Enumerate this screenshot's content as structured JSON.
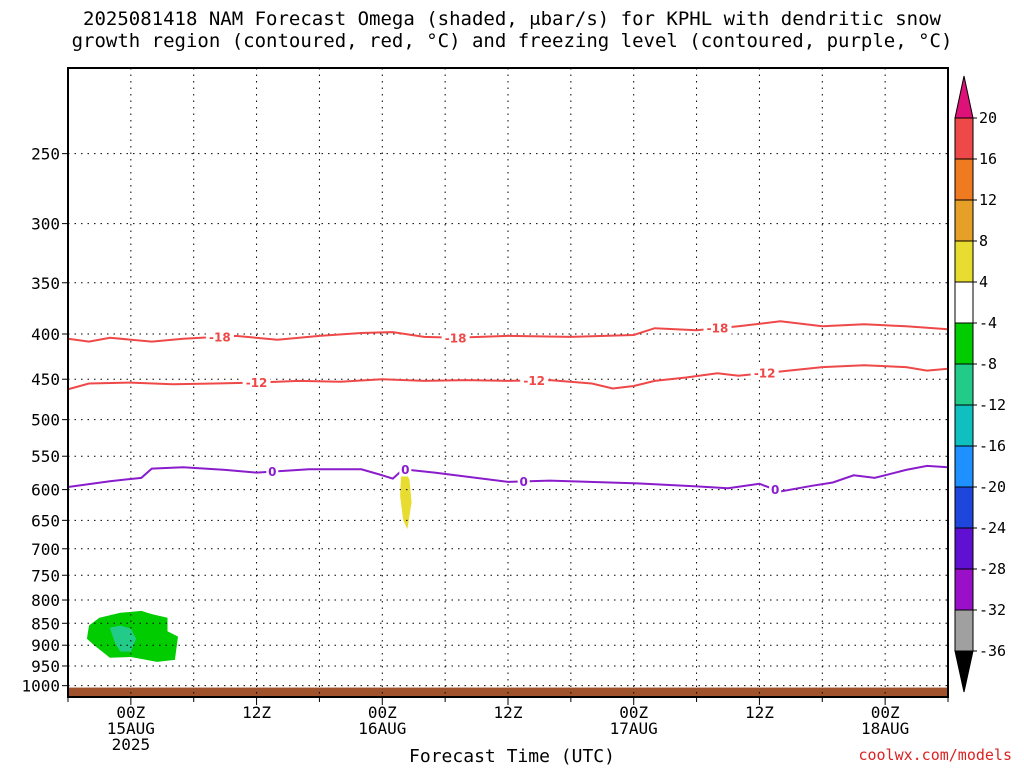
{
  "title_lines": [
    "2025081418 NAM Forecast Omega (shaded, μbar/s) for KPHL with dendritic snow",
    "growth region (contoured, red, °C) and freezing level (contoured, purple, °C)"
  ],
  "xlabel": "Forecast Time (UTC)",
  "credit": "coolwx.com/models",
  "colors": {
    "red_contour": "#ef4848",
    "purple_contour": "#8a1ccc",
    "ground": "#a0522d",
    "grid": "#000000"
  },
  "chart_data": {
    "type": "contour",
    "log_pressure_axis": true,
    "y_axis_ticks": [
      250,
      300,
      350,
      400,
      450,
      500,
      550,
      600,
      650,
      700,
      750,
      800,
      850,
      900,
      950,
      1000
    ],
    "ylim": [
      200,
      1030
    ],
    "x_range_hours": [
      -6,
      78
    ],
    "x_ticks": [
      {
        "hour": 0,
        "lines": [
          "00Z",
          "15AUG",
          "2025"
        ]
      },
      {
        "hour": 12,
        "lines": [
          "12Z"
        ]
      },
      {
        "hour": 24,
        "lines": [
          "00Z",
          "16AUG"
        ]
      },
      {
        "hour": 36,
        "lines": [
          "12Z"
        ]
      },
      {
        "hour": 48,
        "lines": [
          "00Z",
          "17AUG"
        ]
      },
      {
        "hour": 60,
        "lines": [
          "12Z"
        ]
      },
      {
        "hour": 72,
        "lines": [
          "00Z",
          "18AUG"
        ]
      }
    ],
    "grid": true,
    "contours": [
      {
        "level": "-18",
        "color": "#ef4848",
        "points": [
          [
            -6,
            405
          ],
          [
            -4,
            408
          ],
          [
            -2,
            404
          ],
          [
            2,
            408
          ],
          [
            5,
            405
          ],
          [
            10,
            402
          ],
          [
            14,
            406
          ],
          [
            18,
            402
          ],
          [
            22,
            399
          ],
          [
            25,
            398
          ],
          [
            28,
            403
          ],
          [
            31,
            404
          ],
          [
            36,
            402
          ],
          [
            42,
            403
          ],
          [
            48,
            401
          ],
          [
            50,
            394
          ],
          [
            54,
            396
          ],
          [
            58,
            392
          ],
          [
            62,
            387
          ],
          [
            66,
            392
          ],
          [
            70,
            390
          ],
          [
            74,
            392
          ],
          [
            78,
            395
          ]
        ],
        "labels": [
          {
            "hour": 8.5,
            "text": "-18"
          },
          {
            "hour": 31,
            "text": "-18"
          },
          {
            "hour": 56,
            "text": "-18"
          }
        ]
      },
      {
        "level": "-12",
        "color": "#ef4848",
        "points": [
          [
            -6,
            462
          ],
          [
            -4,
            455
          ],
          [
            0,
            454
          ],
          [
            4,
            456
          ],
          [
            8,
            455
          ],
          [
            12,
            454
          ],
          [
            16,
            452
          ],
          [
            20,
            453
          ],
          [
            24,
            450
          ],
          [
            28,
            452
          ],
          [
            32,
            451
          ],
          [
            36,
            452
          ],
          [
            40,
            451
          ],
          [
            44,
            455
          ],
          [
            46,
            461
          ],
          [
            48,
            458
          ],
          [
            50,
            452
          ],
          [
            53,
            448
          ],
          [
            56,
            443
          ],
          [
            58,
            446
          ],
          [
            62,
            441
          ],
          [
            66,
            436
          ],
          [
            70,
            434
          ],
          [
            74,
            436
          ],
          [
            76,
            440
          ],
          [
            78,
            438
          ]
        ],
        "labels": [
          {
            "hour": 12,
            "text": "-12"
          },
          {
            "hour": 38.5,
            "text": "-12"
          },
          {
            "hour": 60.5,
            "text": "-12"
          }
        ]
      },
      {
        "level": "0",
        "color": "#8a1ccc",
        "points": [
          [
            -6,
            596
          ],
          [
            -2,
            587
          ],
          [
            1,
            582
          ],
          [
            2,
            568
          ],
          [
            5,
            566
          ],
          [
            9,
            570
          ],
          [
            12,
            574
          ],
          [
            17,
            569
          ],
          [
            22,
            569
          ],
          [
            24,
            578
          ],
          [
            25,
            583
          ],
          [
            26,
            569
          ],
          [
            29,
            574
          ],
          [
            36,
            588
          ],
          [
            40,
            586
          ],
          [
            48,
            590
          ],
          [
            54,
            595
          ],
          [
            57,
            598
          ],
          [
            60,
            591
          ],
          [
            62,
            603
          ],
          [
            65,
            594
          ],
          [
            67,
            589
          ],
          [
            69,
            578
          ],
          [
            71,
            582
          ],
          [
            74,
            570
          ],
          [
            76,
            564
          ],
          [
            78,
            566
          ]
        ],
        "labels": [
          {
            "hour": 13.5,
            "text": "0"
          },
          {
            "hour": 37.5,
            "text": "0"
          },
          {
            "hour": 61.5,
            "text": "0"
          },
          {
            "hour": 26.2,
            "text": "0"
          }
        ]
      }
    ],
    "shaded_regions": [
      {
        "omega_range": [
          -8,
          -4
        ],
        "color": "#00cc00",
        "points": [
          [
            -4,
            855
          ],
          [
            -3,
            838
          ],
          [
            -1,
            827
          ],
          [
            1,
            823
          ],
          [
            2,
            830
          ],
          [
            3.5,
            838
          ],
          [
            3.5,
            868
          ],
          [
            4.5,
            880
          ],
          [
            4.2,
            935
          ],
          [
            2.5,
            940
          ],
          [
            0,
            928
          ],
          [
            -2,
            930
          ],
          [
            -3.5,
            900
          ],
          [
            -4.2,
            885
          ]
        ]
      },
      {
        "omega_range": [
          -12,
          -8
        ],
        "color": "#22cc88",
        "points": [
          [
            -2,
            860
          ],
          [
            -1,
            855
          ],
          [
            0,
            862
          ],
          [
            0.5,
            885
          ],
          [
            0,
            915
          ],
          [
            -1,
            915
          ],
          [
            -1.5,
            895
          ]
        ]
      },
      {
        "omega_range": [
          4,
          8
        ],
        "color": "#e8dc30",
        "points": [
          [
            25.8,
            575
          ],
          [
            26.2,
            570
          ],
          [
            26.6,
            585
          ],
          [
            26.8,
            620
          ],
          [
            26.4,
            665
          ],
          [
            26,
            650
          ],
          [
            25.7,
            610
          ]
        ]
      }
    ],
    "ground": {
      "from_pressure": 1005,
      "to_pressure": 1030
    },
    "colorbar": {
      "labels": [
        "20",
        "16",
        "12",
        "8",
        "4",
        "-4",
        "-8",
        "-12",
        "-16",
        "-20",
        "-24",
        "-28",
        "-32",
        "-36"
      ],
      "colors_top_to_bottom": [
        "#ef4848",
        "#f07a20",
        "#e6a028",
        "#e8dc30",
        "#ffffff",
        "#00cc00",
        "#22cc88",
        "#10c0c0",
        "#1e90ff",
        "#1e46dc",
        "#6010d0",
        "#9a10c8",
        "#a0a0a0"
      ],
      "top_cap_color": "#dd1177",
      "bottom_cap_color": "#000000"
    }
  }
}
